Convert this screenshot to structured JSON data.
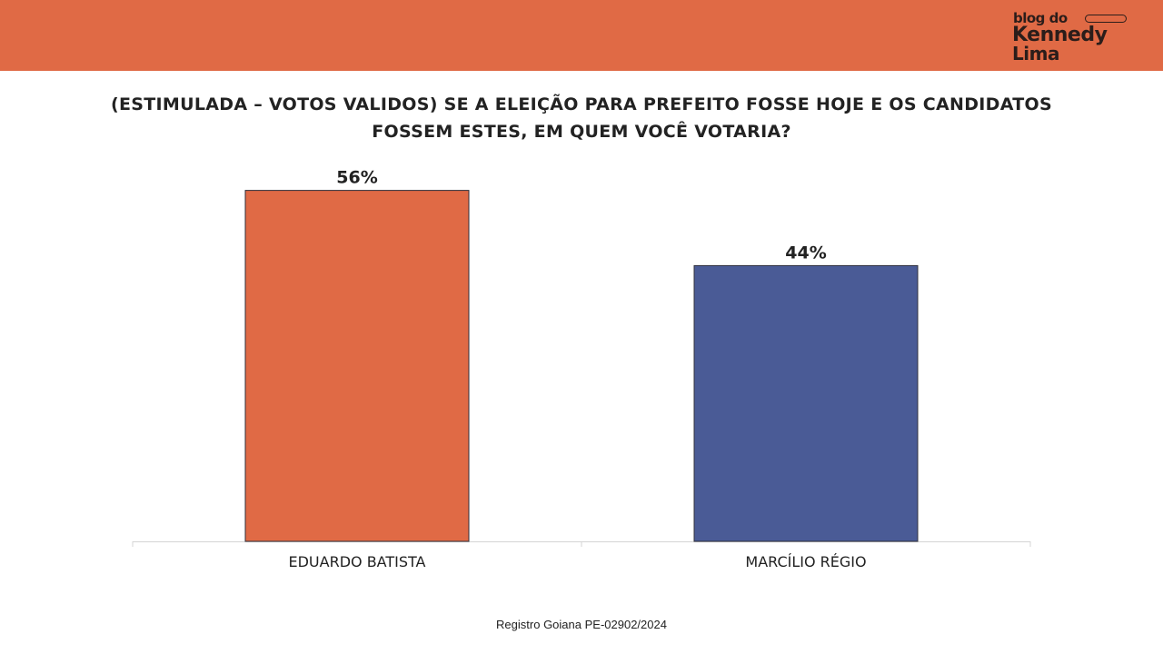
{
  "header": {
    "logo_line1": "blog do",
    "logo_line2": "Kennedy",
    "logo_line3": "Lima",
    "bar_color": "#e06a45"
  },
  "title_line1": "(ESTIMULADA – VOTOS VALIDOS) SE A ELEIÇÃO PARA PREFEITO FOSSE HOJE E OS CANDIDATOS",
  "title_line2": "FOSSEM ESTES, EM QUEM VOCÊ VOTARIA?",
  "footer": "Registro Goiana PE-02902/2024",
  "chart_data": {
    "type": "bar",
    "categories": [
      "EDUARDO BATISTA",
      "MARCÍLIO RÉGIO"
    ],
    "values": [
      56,
      44
    ],
    "value_labels": [
      "56%",
      "44%"
    ],
    "colors": [
      "#e06a45",
      "#4a5b96"
    ],
    "ylim": [
      0,
      60
    ],
    "grid": false,
    "legend": "none",
    "xlabel": "",
    "ylabel": ""
  }
}
